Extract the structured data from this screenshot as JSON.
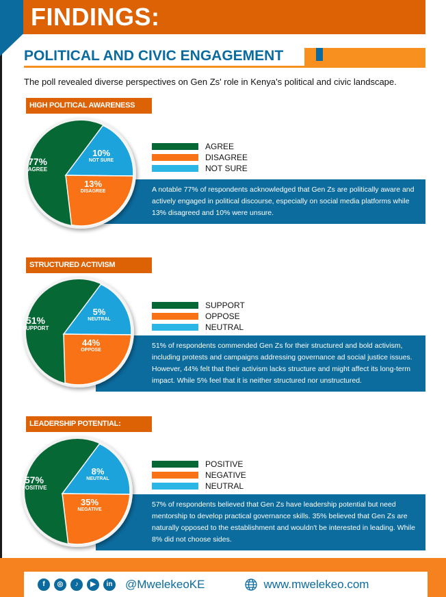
{
  "header": {
    "title": "FINDINGS:"
  },
  "section": {
    "title": "POLITICAL AND CIVIC ENGAGEMENT",
    "intro": "The poll revealed diverse perspectives on Gen Zs' role in Kenya's political and civic landscape."
  },
  "colors": {
    "green": "#056835",
    "orange": "#f97316",
    "blue": "#1ca3dc",
    "header_orange": "#dd6206",
    "accent_blue": "#0b6b9f"
  },
  "chart_data": [
    {
      "type": "pie",
      "title": "HIGH POLITICAL AWARENESS",
      "slices": [
        {
          "label": "AGREE",
          "value": 77
        },
        {
          "label": "NOT SURE",
          "value": 10
        },
        {
          "label": "DISAGREE",
          "value": 13
        }
      ],
      "legend": [
        "AGREE",
        "DISAGREE",
        "NOT SURE"
      ],
      "legend_placement": "right",
      "description": "A notable 77% of respondents acknowledged that Gen Zs are politically aware and actively engaged in political discourse, especially on social media platforms while 13% disagreed and 10% were unsure."
    },
    {
      "type": "pie",
      "title": "STRUCTURED ACTIVISM",
      "slices": [
        {
          "label": "SUPPORT",
          "value": 51
        },
        {
          "label": "NEUTRAL",
          "value": 5
        },
        {
          "label": "OPPOSE",
          "value": 44
        }
      ],
      "legend": [
        "SUPPORT",
        "OPPOSE",
        "NEUTRAL"
      ],
      "legend_placement": "right",
      "description": "51% of respondents commended Gen Zs for their structured and bold activism, including protests and campaigns addressing governance ad social justice issues. However, 44% felt that their activism lacks structure and might affect its long-term impact. While 5% feel that it is neither structured nor unstructured."
    },
    {
      "type": "pie",
      "title": "LEADERSHIP POTENTIAL:",
      "slices": [
        {
          "label": "POSITIVE",
          "value": 57
        },
        {
          "label": "NEUTRAL",
          "value": 8
        },
        {
          "label": "NEGATIVE",
          "value": 35
        }
      ],
      "legend": [
        "POSITIVE",
        "NEGATIVE",
        "NEUTRAL"
      ],
      "legend_placement": "right",
      "description": "57% of respondents believed that Gen Zs have leadership potential but need mentorship to develop practical governance skills. 35% believed that Gen Zs are naturally opposed to the establishment and wouldn't be interested in leading. While 8% did not choose sides."
    }
  ],
  "pct": [
    [
      "77%",
      "10%",
      "13%"
    ],
    [
      "51%",
      "5%",
      "44%"
    ],
    [
      "57%",
      "8%",
      "35%"
    ]
  ],
  "footer": {
    "social": [
      "facebook-icon",
      "instagram-icon",
      "tiktok-icon",
      "youtube-icon",
      "linkedin-icon"
    ],
    "handle": "@MwelekeoKE",
    "website": "www.mwelekeo.com"
  }
}
